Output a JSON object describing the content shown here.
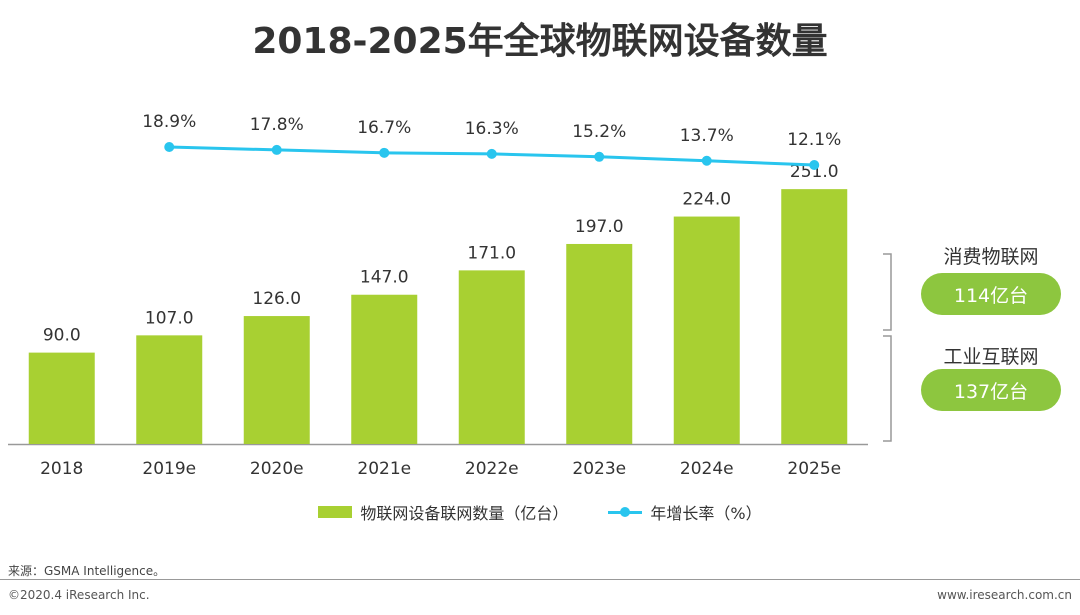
{
  "title": "2018-2025年全球物联网设备数量",
  "chart_data": {
    "type": "bar",
    "categories": [
      "2018",
      "2019e",
      "2020e",
      "2021e",
      "2022e",
      "2023e",
      "2024e",
      "2025e"
    ],
    "series": [
      {
        "name": "物联网设备联网数量（亿台）",
        "type": "bar",
        "values": [
          90.0,
          107.0,
          126.0,
          147.0,
          171.0,
          197.0,
          224.0,
          251.0
        ],
        "labels": [
          "90.0",
          "107.0",
          "126.0",
          "147.0",
          "171.0",
          "197.0",
          "224.0",
          "251.0"
        ],
        "color": "#a8d032"
      },
      {
        "name": "年增长率（%）",
        "type": "line",
        "x": [
          "2019e",
          "2020e",
          "2021e",
          "2022e",
          "2023e",
          "2024e",
          "2025e"
        ],
        "values": [
          18.9,
          17.8,
          16.7,
          16.3,
          15.2,
          13.7,
          12.1
        ],
        "labels": [
          "18.9%",
          "17.8%",
          "16.7%",
          "16.3%",
          "15.2%",
          "13.7%",
          "12.1%"
        ],
        "color": "#29c5ee"
      }
    ],
    "ylim": [
      0,
      260
    ],
    "legend_position": "bottom"
  },
  "breakdown": [
    {
      "label": "消费物联网",
      "value": "114亿台"
    },
    {
      "label": "工业互联网",
      "value": "137亿台"
    }
  ],
  "legend": {
    "bar_label": "物联网设备联网数量（亿台）",
    "line_label": "年增长率（%）"
  },
  "source": "来源：GSMA Intelligence。",
  "footer": {
    "copyright": "©2020.4 iResearch Inc.",
    "website": "www.iresearch.com.cn"
  },
  "colors": {
    "bar": "#a8d032",
    "line": "#29c5ee",
    "pill": "#8dc63f",
    "axis": "#999999"
  }
}
